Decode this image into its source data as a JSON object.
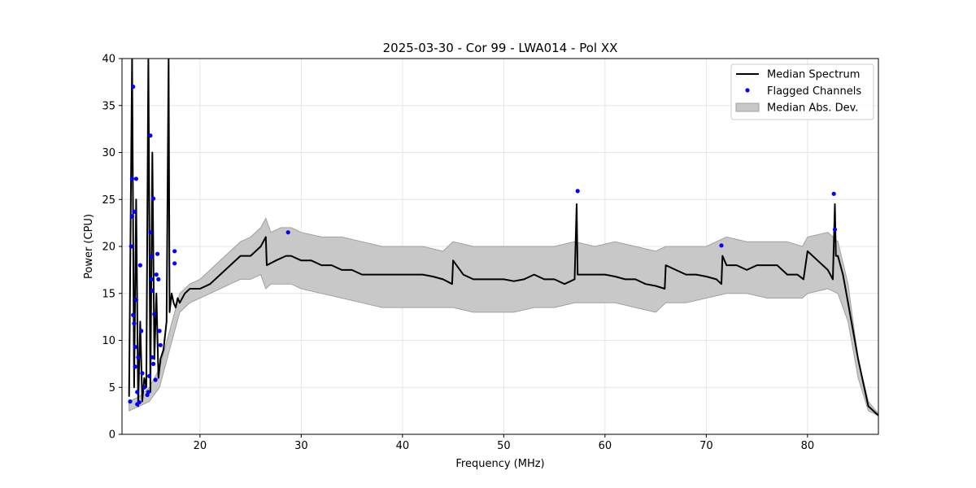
{
  "chart_data": {
    "type": "line",
    "title": "2025-03-30 - Cor 99 - LWA014 - Pol XX",
    "xlabel": "Frequency (MHz)",
    "ylabel": "Power (CPU)",
    "xlim": [
      12.3,
      87.0
    ],
    "ylim": [
      0,
      40
    ],
    "xticks": [
      20,
      30,
      40,
      50,
      60,
      70,
      80
    ],
    "yticks": [
      0,
      5,
      10,
      15,
      20,
      25,
      30,
      35,
      40
    ],
    "grid": true,
    "legend_position": "top-right",
    "legend": [
      "Median Spectrum",
      "Flagged Channels",
      "Median Abs. Dev."
    ],
    "colors": {
      "median": "#000000",
      "flagged": "#0000ff",
      "mad_fill": "#c8c8c8",
      "mad_edge": "#a0a0a0",
      "grid": "#e6e6e6"
    },
    "series": [
      {
        "name": "Median Spectrum",
        "x": [
          13.0,
          13.3,
          13.5,
          13.7,
          13.9,
          14.1,
          14.3,
          14.5,
          14.7,
          14.9,
          15.1,
          15.3,
          15.5,
          15.7,
          15.9,
          16.1,
          16.4,
          16.7,
          16.9,
          17.0,
          17.2,
          17.4,
          17.6,
          17.8,
          18.0,
          18.5,
          19.0,
          20.0,
          21.0,
          22.0,
          23.0,
          24.0,
          25.0,
          26.0,
          26.5,
          26.6,
          27.5,
          28.5,
          29.0,
          30.0,
          31.0,
          32.0,
          33.0,
          34.0,
          35.0,
          36.0,
          37.0,
          38.0,
          39.0,
          40.0,
          41.0,
          42.0,
          43.0,
          44.0,
          44.9,
          45.0,
          46.0,
          47.0,
          48.0,
          49.0,
          50.0,
          51.0,
          52.0,
          53.0,
          54.0,
          55.0,
          56.0,
          57.0,
          57.2,
          57.3,
          58.0,
          59.0,
          60.0,
          61.0,
          62.0,
          63.0,
          64.0,
          65.0,
          65.9,
          66.0,
          67.0,
          68.0,
          69.0,
          70.0,
          71.0,
          71.5,
          71.6,
          72.0,
          73.0,
          74.0,
          75.0,
          76.0,
          77.0,
          78.0,
          79.0,
          79.6,
          80.0,
          81.0,
          82.0,
          82.5,
          82.7,
          82.8,
          83.0,
          83.5,
          84.0,
          84.5,
          85.0,
          85.5,
          85.8,
          86.0,
          86.5,
          87.0
        ],
        "values": [
          4.0,
          40.0,
          5.0,
          25.0,
          3.0,
          12.0,
          3.5,
          6.0,
          5.0,
          40.0,
          4.5,
          30.0,
          8.0,
          15.0,
          6.0,
          8.0,
          9.0,
          12.0,
          40.0,
          13.0,
          15.0,
          14.0,
          13.5,
          14.5,
          14.0,
          15.0,
          15.5,
          15.5,
          16.0,
          17.0,
          18.0,
          19.0,
          19.0,
          20.0,
          21.0,
          18.0,
          18.5,
          19.0,
          19.0,
          18.5,
          18.5,
          18.0,
          18.0,
          17.5,
          17.5,
          17.0,
          17.0,
          17.0,
          17.0,
          17.0,
          17.0,
          17.0,
          16.8,
          16.5,
          16.0,
          18.5,
          17.0,
          16.5,
          16.5,
          16.5,
          16.5,
          16.3,
          16.5,
          17.0,
          16.5,
          16.5,
          16.0,
          16.5,
          24.5,
          17.0,
          17.0,
          17.0,
          17.0,
          16.8,
          16.5,
          16.5,
          16.0,
          15.8,
          15.5,
          18.0,
          17.5,
          17.0,
          17.0,
          16.8,
          16.5,
          16.0,
          19.0,
          18.0,
          18.0,
          17.5,
          18.0,
          18.0,
          18.0,
          17.0,
          17.0,
          16.5,
          19.5,
          18.5,
          17.5,
          16.5,
          24.5,
          19.0,
          19.0,
          17.0,
          14.0,
          11.0,
          8.0,
          5.5,
          4.0,
          3.0,
          2.5,
          2.0
        ]
      },
      {
        "name": "Median Abs. Dev.",
        "x": [
          13.0,
          14.0,
          15.0,
          16.0,
          17.0,
          18.0,
          19.0,
          20.0,
          21.0,
          22.0,
          23.0,
          24.0,
          25.0,
          26.0,
          26.5,
          27.0,
          28.0,
          29.0,
          30.0,
          32.0,
          34.0,
          36.0,
          38.0,
          40.0,
          42.0,
          44.0,
          45.0,
          47.0,
          49.0,
          51.0,
          53.0,
          55.0,
          57.0,
          59.0,
          61.0,
          63.0,
          65.0,
          66.0,
          68.0,
          70.0,
          72.0,
          74.0,
          76.0,
          78.0,
          79.5,
          80.0,
          82.0,
          83.0,
          84.0,
          85.0,
          86.0,
          87.0
        ],
        "upper": [
          3.5,
          4.0,
          5.0,
          7.0,
          11.0,
          15.0,
          16.0,
          16.5,
          17.5,
          18.5,
          19.5,
          20.5,
          21.0,
          22.0,
          23.0,
          21.5,
          22.0,
          22.0,
          21.5,
          21.0,
          21.0,
          20.5,
          20.0,
          20.0,
          20.0,
          19.5,
          20.5,
          20.0,
          20.0,
          20.0,
          20.0,
          20.0,
          20.5,
          20.0,
          20.5,
          20.0,
          19.5,
          20.0,
          20.0,
          20.0,
          21.0,
          20.5,
          20.5,
          20.5,
          20.0,
          21.0,
          21.5,
          20.5,
          16.0,
          8.0,
          3.5,
          2.2
        ],
        "lower": [
          2.5,
          3.0,
          3.5,
          5.0,
          9.0,
          13.0,
          14.0,
          14.5,
          15.0,
          15.5,
          16.0,
          16.5,
          16.5,
          17.0,
          15.5,
          16.0,
          16.0,
          16.0,
          15.5,
          15.0,
          14.5,
          14.0,
          13.5,
          13.5,
          13.5,
          13.5,
          13.5,
          13.0,
          13.0,
          13.0,
          13.5,
          13.5,
          14.0,
          14.0,
          14.0,
          13.5,
          13.0,
          14.0,
          14.0,
          14.5,
          15.0,
          15.0,
          14.5,
          14.5,
          14.5,
          15.0,
          15.5,
          15.0,
          12.0,
          6.0,
          2.5,
          2.0
        ]
      },
      {
        "name": "Flagged Channels",
        "x": [
          13.1,
          13.2,
          13.3,
          13.3,
          13.4,
          13.4,
          13.5,
          13.5,
          13.6,
          13.6,
          13.7,
          13.7,
          13.8,
          13.8,
          13.9,
          14.0,
          14.1,
          14.2,
          14.3,
          14.5,
          14.8,
          14.9,
          15.0,
          15.1,
          15.1,
          15.2,
          15.2,
          15.3,
          15.3,
          15.4,
          15.4,
          15.5,
          15.6,
          15.7,
          15.8,
          15.9,
          16.0,
          16.1,
          17.5,
          17.5,
          28.7,
          57.3,
          71.5,
          82.6,
          82.7
        ],
        "values": [
          3.5,
          20.0,
          23.2,
          27.2,
          37.0,
          12.7,
          23.7,
          11.8,
          9.3,
          7.2,
          27.2,
          14.3,
          4.5,
          3.2,
          8.2,
          3.4,
          18.0,
          11.0,
          6.5,
          5.0,
          4.2,
          4.5,
          6.2,
          31.8,
          21.5,
          18.9,
          16.5,
          15.3,
          8.2,
          25.1,
          7.5,
          12.8,
          5.8,
          17.0,
          19.2,
          16.5,
          11.0,
          9.5,
          19.5,
          18.2,
          21.5,
          25.9,
          20.1,
          25.6,
          21.8
        ]
      }
    ]
  }
}
